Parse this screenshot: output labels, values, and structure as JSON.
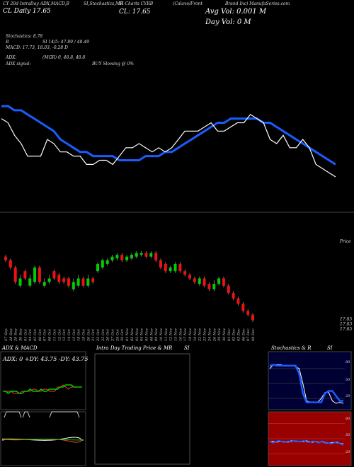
{
  "header": {
    "line1": "CY 20d IntraDay ADX,MACD,B",
    "line1b": "SI,Stochastics,MR",
    "line1c": "SI Charts CYRB",
    "line1d": "(Calavo/Front",
    "line2": "CL Daily 17.65",
    "close_label": "CL: 17.65",
    "avg_vol": "Avg Vol: 0.001 M",
    "day_vol": "Day Vol: 0  M",
    "overlay_text": "Brand Inc) ManufaSeries.com",
    "stochastics": "Stochastics: 8.78",
    "stoch_b": "B",
    "si_line": "SI 14/5: 47.89 / 48.49",
    "macd": "MACD: 17.73,  18.03, -0.28  D",
    "adx": "ADX:",
    "adx_vals": "(MGR) 0,  48.8,  48.8",
    "adx_signal": "ADX  signal:",
    "buy": "BUY Slowing @ 0%"
  },
  "price_axis": {
    "top_label": "Price",
    "low_labels": [
      "17.65",
      "17.63",
      "17.65"
    ]
  },
  "date_labels": [
    "27 Sep",
    "28 Sep",
    "29 Sep",
    "30 Sep",
    "01 Oct",
    "04 Oct",
    "05 Oct",
    "06 Oct",
    "07 Oct",
    "08 Oct",
    "11 Oct",
    "12 Oct",
    "13 Oct",
    "14 Oct",
    "15 Oct",
    "18 Oct",
    "19 Oct",
    "20 Oct",
    "21 Oct",
    "22 Oct",
    "25 Oct",
    "26 Oct",
    "27 Oct",
    "28 Oct",
    "29 Oct",
    "01 Nov",
    "02 Nov",
    "03 Nov",
    "04 Nov",
    "05 Nov",
    "08 Nov",
    "09 Nov",
    "10 Nov",
    "11 Nov",
    "12 Nov",
    "15 Nov",
    "16 Nov",
    "17 Nov",
    "18 Nov",
    "19 Nov",
    "22 Nov",
    "23 Nov",
    "24 Nov",
    "26 Nov",
    "29 Nov",
    "30 Nov",
    "01 Dec",
    "02 Dec",
    "03 Dec",
    "06 Dec",
    "07 Dec",
    "08 Dec"
  ],
  "panels": {
    "adx_title": "ADX  & MACD",
    "adx_readout": "ADX: 0  +DY: 43.75  -DY: 43.75",
    "intra_title": "Intra  Day Trading Price  & MR",
    "intra_si": "SI",
    "stoch_title": "Stochastics & R",
    "stoch_si": "SI",
    "stoch_levels": [
      "80",
      "50",
      "20"
    ],
    "rsi_levels": [
      "80",
      "50",
      "20"
    ]
  },
  "colors": {
    "background": "#000000",
    "up_candle": "#00cc00",
    "down_candle": "#ee1111",
    "ma_line": "#1a5cff",
    "price_line": "#ffffff",
    "rsi_panel": "#990000",
    "stoch_panel": "#000033"
  },
  "chart_data": [
    {
      "type": "line",
      "name": "price-overlay",
      "series": [
        {
          "values": [
            17.76,
            17.75,
            17.72,
            17.7,
            17.67,
            17.67,
            17.67,
            17.71,
            17.7,
            17.68,
            17.68,
            17.67,
            17.67,
            17.65,
            17.65,
            17.66,
            17.66,
            17.65,
            17.67,
            17.69,
            17.69,
            17.7,
            17.69,
            17.68,
            17.69,
            17.68,
            17.69,
            17.71,
            17.73,
            17.73,
            17.73,
            17.74,
            17.75,
            17.73,
            17.73,
            17.74,
            17.75,
            17.75,
            17.77,
            17.76,
            17.75,
            17.71,
            17.7,
            17.72,
            17.69,
            17.69,
            17.71,
            17.69,
            17.65,
            17.64,
            17.63,
            17.62
          ]
        },
        {
          "values": [
            17.79,
            17.79,
            17.78,
            17.78,
            17.77,
            17.76,
            17.75,
            17.74,
            17.73,
            17.71,
            17.7,
            17.69,
            17.68,
            17.68,
            17.67,
            17.67,
            17.67,
            17.67,
            17.66,
            17.66,
            17.66,
            17.66,
            17.67,
            17.67,
            17.67,
            17.68,
            17.68,
            17.69,
            17.7,
            17.71,
            17.72,
            17.73,
            17.74,
            17.75,
            17.75,
            17.76,
            17.76,
            17.76,
            17.76,
            17.76,
            17.75,
            17.75,
            17.74,
            17.73,
            17.72,
            17.71,
            17.7,
            17.69,
            17.68,
            17.67,
            17.66,
            17.65
          ]
        }
      ]
    },
    {
      "type": "bar",
      "name": "candles",
      "direction": [
        "down",
        "down",
        "down",
        "up",
        "down",
        "up",
        "up",
        "down",
        "up",
        "up",
        "down",
        "down",
        "down",
        "down",
        "up",
        "up",
        "down",
        "up",
        "down",
        "up",
        "up",
        "up",
        "up",
        "up",
        "down",
        "up",
        "up",
        "up",
        "up",
        "down",
        "up",
        "down",
        "down",
        "down",
        "up",
        "up",
        "down",
        "down",
        "down",
        "down",
        "up",
        "down",
        "down",
        "up",
        "up",
        "down",
        "down",
        "down",
        "down",
        "down",
        "down",
        "down"
      ],
      "open": [
        18.0,
        17.98,
        17.94,
        17.84,
        17.92,
        17.84,
        17.86,
        17.94,
        17.84,
        17.86,
        17.92,
        17.9,
        17.88,
        17.88,
        17.82,
        17.84,
        17.88,
        17.84,
        17.88,
        17.92,
        17.94,
        17.96,
        17.98,
        17.99,
        18.01,
        17.98,
        17.99,
        18.0,
        18.01,
        18.02,
        18.0,
        18.02,
        17.98,
        17.96,
        17.92,
        17.92,
        17.96,
        17.92,
        17.9,
        17.88,
        17.85,
        17.88,
        17.85,
        17.82,
        17.85,
        17.88,
        17.84,
        17.8,
        17.77,
        17.74,
        17.7,
        17.68
      ],
      "close": [
        17.98,
        17.94,
        17.86,
        17.88,
        17.88,
        17.88,
        17.94,
        17.86,
        17.86,
        17.88,
        17.88,
        17.86,
        17.86,
        17.84,
        17.86,
        17.88,
        17.84,
        17.88,
        17.86,
        17.96,
        17.98,
        17.98,
        18.0,
        18.01,
        17.98,
        18.0,
        18.01,
        18.02,
        18.02,
        18.0,
        18.02,
        17.98,
        17.94,
        17.92,
        17.94,
        17.96,
        17.92,
        17.9,
        17.88,
        17.86,
        17.88,
        17.84,
        17.82,
        17.85,
        17.88,
        17.84,
        17.8,
        17.77,
        17.74,
        17.7,
        17.68,
        17.65
      ],
      "high": [
        18.01,
        17.99,
        17.95,
        17.9,
        17.93,
        17.9,
        17.95,
        17.95,
        17.88,
        17.9,
        17.93,
        17.91,
        17.89,
        17.89,
        17.88,
        17.9,
        17.89,
        17.9,
        17.89,
        17.97,
        17.99,
        17.99,
        18.01,
        18.02,
        18.02,
        18.01,
        18.02,
        18.03,
        18.03,
        18.03,
        18.03,
        18.03,
        17.99,
        17.97,
        17.95,
        17.97,
        17.97,
        17.93,
        17.91,
        17.89,
        17.89,
        17.89,
        17.86,
        17.87,
        17.89,
        17.89,
        17.85,
        17.81,
        17.78,
        17.75,
        17.71,
        17.69
      ],
      "low": [
        17.97,
        17.93,
        17.85,
        17.83,
        17.87,
        17.83,
        17.85,
        17.85,
        17.83,
        17.85,
        17.87,
        17.85,
        17.85,
        17.83,
        17.81,
        17.83,
        17.83,
        17.83,
        17.85,
        17.91,
        17.93,
        17.95,
        17.97,
        17.98,
        17.97,
        17.97,
        17.98,
        17.99,
        18.0,
        17.99,
        17.99,
        17.97,
        17.93,
        17.91,
        17.91,
        17.91,
        17.91,
        17.89,
        17.87,
        17.85,
        17.84,
        17.83,
        17.81,
        17.81,
        17.84,
        17.83,
        17.79,
        17.76,
        17.73,
        17.69,
        17.67,
        17.64
      ]
    },
    {
      "type": "line",
      "name": "adx-panel",
      "series": [
        {
          "values": [
            50,
            50,
            50,
            50,
            49,
            49,
            49,
            50,
            50,
            50,
            50,
            51,
            51,
            50,
            50,
            51,
            51,
            50,
            50,
            50,
            52,
            52,
            53,
            52,
            51,
            52,
            52,
            52,
            52,
            52
          ]
        },
        {
          "values": [
            50,
            50,
            49,
            50,
            50,
            50,
            49,
            49,
            50,
            50,
            51,
            50,
            50,
            50,
            51,
            50,
            50,
            51,
            51,
            51,
            51,
            52,
            52,
            53,
            53,
            53,
            52,
            52,
            52,
            52
          ]
        }
      ]
    },
    {
      "type": "line",
      "name": "stochastics-panel",
      "ylim": [
        0,
        100
      ],
      "series": [
        {
          "values": [
            86,
            88,
            86,
            86,
            86,
            86,
            86,
            86,
            70,
            30,
            12,
            12,
            12,
            12,
            12,
            30,
            35,
            35,
            25,
            15,
            15
          ]
        },
        {
          "values": [
            80,
            88,
            88,
            88,
            86,
            86,
            86,
            84,
            80,
            50,
            15,
            12,
            12,
            12,
            20,
            32,
            32,
            15,
            10,
            12,
            10
          ]
        }
      ]
    }
  ]
}
